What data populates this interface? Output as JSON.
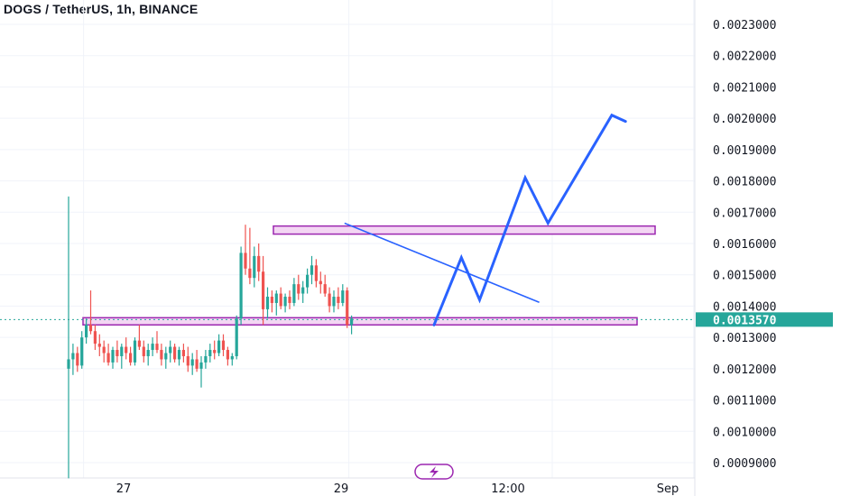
{
  "header": {
    "title": "DOGS / TetherUS, 1h, BINANCE"
  },
  "colors": {
    "up": "#26a69a",
    "down": "#ef5350",
    "projection": "#2962ff",
    "zone_fill": "#f3d6f3",
    "zone_border": "#9c27b0",
    "trendline": "#2962ff",
    "price_badge": "#26a69a",
    "grid": "#f0f3fa"
  },
  "chart_data": {
    "type": "candlestick",
    "symbol": "DOGS / TetherUS",
    "interval": "1h",
    "exchange": "BINANCE",
    "ylim": [
      0.00085,
      0.00235
    ],
    "y_ticks": [
      "0.0023000",
      "0.0022000",
      "0.0021000",
      "0.0020000",
      "0.0019000",
      "0.0018000",
      "0.0017000",
      "0.0016000",
      "0.0015000",
      "0.0014000",
      "0.0013000",
      "0.0012000",
      "0.0011000",
      "0.0010000",
      "0.0009000"
    ],
    "x_ticks": [
      "27",
      "29",
      "12:00",
      "Sep"
    ],
    "x_tick_positions": [
      4,
      64,
      110,
      142
    ],
    "bar_count": 160,
    "current_price": "0.0013570",
    "resistance_zone": [
      0.00163,
      0.00165
    ],
    "support_zone": [
      0.00134,
      0.00136
    ],
    "trendline": [
      {
        "bar": 52,
        "price": 0.001665
      },
      {
        "bar": 94,
        "price": 0.001412
      }
    ],
    "projection_path": [
      {
        "bar": 86,
        "price": 0.00134
      },
      {
        "bar": 92,
        "price": 0.001555
      },
      {
        "bar": 96,
        "price": 0.00142
      },
      {
        "bar": 106,
        "price": 0.00181
      },
      {
        "bar": 111,
        "price": 0.001665
      },
      {
        "bar": 125,
        "price": 0.00201
      },
      {
        "bar": 128,
        "price": 0.00199
      }
    ],
    "candles": [
      [
        0.0012,
        0.00175,
        0.00085,
        0.00123
      ],
      [
        0.00123,
        0.00128,
        0.00118,
        0.00125
      ],
      [
        0.00125,
        0.00127,
        0.00119,
        0.00121
      ],
      [
        0.00121,
        0.00132,
        0.0012,
        0.0013
      ],
      [
        0.0013,
        0.00136,
        0.00128,
        0.00134
      ],
      [
        0.00134,
        0.00145,
        0.00131,
        0.00132
      ],
      [
        0.00132,
        0.00134,
        0.00126,
        0.00128
      ],
      [
        0.00128,
        0.00131,
        0.00124,
        0.00127
      ],
      [
        0.00127,
        0.00129,
        0.00122,
        0.00125
      ],
      [
        0.00125,
        0.00128,
        0.00121,
        0.00122
      ],
      [
        0.00122,
        0.00127,
        0.0012,
        0.00126
      ],
      [
        0.00126,
        0.00129,
        0.00122,
        0.00124
      ],
      [
        0.00124,
        0.00128,
        0.0012,
        0.00127
      ],
      [
        0.00127,
        0.0013,
        0.00123,
        0.00125
      ],
      [
        0.00125,
        0.00127,
        0.00121,
        0.00122
      ],
      [
        0.00122,
        0.0013,
        0.00121,
        0.00129
      ],
      [
        0.00129,
        0.00134,
        0.00126,
        0.00127
      ],
      [
        0.00127,
        0.00129,
        0.00122,
        0.00124
      ],
      [
        0.00124,
        0.00128,
        0.00121,
        0.00126
      ],
      [
        0.00126,
        0.0013,
        0.00124,
        0.00128
      ],
      [
        0.00128,
        0.00132,
        0.00125,
        0.00126
      ],
      [
        0.00126,
        0.00128,
        0.00121,
        0.00123
      ],
      [
        0.00123,
        0.00127,
        0.0012,
        0.00125
      ],
      [
        0.00125,
        0.00129,
        0.00122,
        0.00127
      ],
      [
        0.00127,
        0.00128,
        0.00122,
        0.00123
      ],
      [
        0.00123,
        0.00127,
        0.00121,
        0.00126
      ],
      [
        0.00126,
        0.00128,
        0.00122,
        0.00124
      ],
      [
        0.00124,
        0.00127,
        0.00119,
        0.00121
      ],
      [
        0.00121,
        0.00125,
        0.00118,
        0.00123
      ],
      [
        0.00123,
        0.00126,
        0.00119,
        0.0012
      ],
      [
        0.0012,
        0.00124,
        0.00114,
        0.00122
      ],
      [
        0.00122,
        0.00126,
        0.0012,
        0.00124
      ],
      [
        0.00124,
        0.00128,
        0.00122,
        0.00126
      ],
      [
        0.00126,
        0.00129,
        0.00123,
        0.00125
      ],
      [
        0.00125,
        0.00131,
        0.00124,
        0.00129
      ],
      [
        0.00129,
        0.00131,
        0.00124,
        0.00126
      ],
      [
        0.00126,
        0.00127,
        0.00121,
        0.00123
      ],
      [
        0.00123,
        0.00125,
        0.00121,
        0.00124
      ],
      [
        0.00124,
        0.00137,
        0.00123,
        0.00136
      ],
      [
        0.00136,
        0.00159,
        0.00134,
        0.00157
      ],
      [
        0.00157,
        0.00166,
        0.0015,
        0.00152
      ],
      [
        0.00152,
        0.00165,
        0.00147,
        0.00149
      ],
      [
        0.00149,
        0.00159,
        0.00146,
        0.00156
      ],
      [
        0.00156,
        0.0016,
        0.00148,
        0.00151
      ],
      [
        0.00151,
        0.00156,
        0.00134,
        0.00139
      ],
      [
        0.00139,
        0.00146,
        0.00136,
        0.00143
      ],
      [
        0.00143,
        0.00145,
        0.00138,
        0.00141
      ],
      [
        0.00141,
        0.00145,
        0.00137,
        0.00144
      ],
      [
        0.00144,
        0.00146,
        0.00139,
        0.0014
      ],
      [
        0.0014,
        0.00144,
        0.00138,
        0.00143
      ],
      [
        0.00143,
        0.00145,
        0.00139,
        0.00141
      ],
      [
        0.00141,
        0.00149,
        0.0014,
        0.00147
      ],
      [
        0.00147,
        0.0015,
        0.00142,
        0.00144
      ],
      [
        0.00144,
        0.00148,
        0.00141,
        0.00146
      ],
      [
        0.00146,
        0.00152,
        0.00144,
        0.0015
      ],
      [
        0.0015,
        0.00156,
        0.00147,
        0.00153
      ],
      [
        0.00153,
        0.00155,
        0.00146,
        0.00148
      ],
      [
        0.00148,
        0.00151,
        0.00144,
        0.00147
      ],
      [
        0.00147,
        0.0015,
        0.00143,
        0.00144
      ],
      [
        0.00144,
        0.00146,
        0.00138,
        0.0014
      ],
      [
        0.0014,
        0.00145,
        0.00138,
        0.00143
      ],
      [
        0.00143,
        0.00146,
        0.00139,
        0.00141
      ],
      [
        0.00141,
        0.00147,
        0.0014,
        0.00145
      ],
      [
        0.00145,
        0.00146,
        0.00133,
        0.00134
      ],
      [
        0.00134,
        0.00137,
        0.00131,
        0.00136
      ]
    ]
  }
}
